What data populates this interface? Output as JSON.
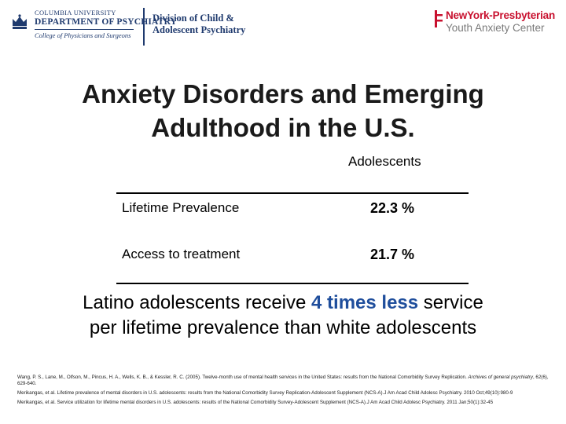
{
  "header": {
    "columbia": {
      "university": "COLUMBIA UNIVERSITY",
      "department": "DEPARTMENT OF PSYCHIATRY",
      "college": "College of Physicians and Surgeons"
    },
    "division": {
      "line1": "Division of Child &",
      "line2": "Adolescent Psychiatry"
    },
    "nyp": {
      "name": "NewYork-Presbyterian",
      "center": "Youth Anxiety Center",
      "brand_color": "#c8102e"
    }
  },
  "title": {
    "line1": "Anxiety Disorders and Emerging",
    "line2": "Adulthood in the U.S."
  },
  "table": {
    "column_header": "Adolescents",
    "rows": [
      {
        "label": "Lifetime Prevalence",
        "value": "22.3 %"
      },
      {
        "label": "Access to treatment",
        "value": "21.7 %"
      }
    ]
  },
  "takeaway": {
    "before": "Latino adolescents receive ",
    "highlight": "4 times less",
    "after": " service",
    "line2": "per lifetime prevalence than white adolescents",
    "highlight_color": "#1f4e9c"
  },
  "references": {
    "ref1_text": "Wang, P. S., Lane, M., Olfson, M., Pincus, H. A., Wells, K. B., & Kessler, R. C. (2005). Twelve-month use of mental health services in the United States: results from the National Comorbidity Survey Replication.",
    "ref1_journal": "Archives of general psychiatry",
    "ref1_tail": ", 62(6), 629-640.",
    "ref2": "Merikangas, et al. Lifetime prevalence of mental disorders in U.S. adolescents: results from the National Comorbidity Survey Replication-Adolescent Supplement (NCS-A).J Am Acad Child Adolesc Psychiatry. 2010 Oct;49(10):980-9",
    "ref3": "Merikangas, et al. Service utilization for lifetime mental disorders in U.S. adolescents: results of the National Comorbidity Survey-Adolescent Supplement (NCS-A).J Am Acad Child Adolesc Psychiatry. 2011 Jan;50(1):32-45"
  }
}
